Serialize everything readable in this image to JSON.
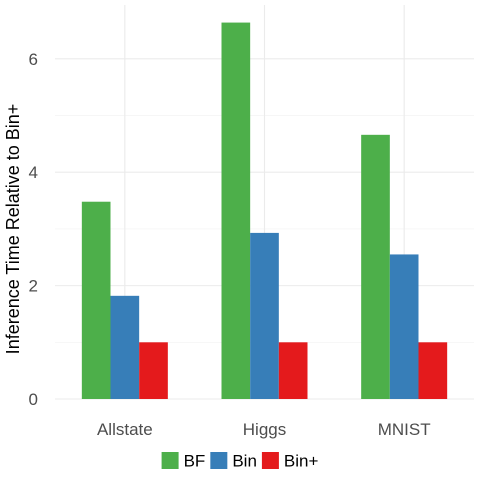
{
  "chart_data": {
    "type": "bar",
    "title": "",
    "xlabel": "",
    "ylabel": "Inference Time Relative to Bin+",
    "categories": [
      "Allstate",
      "Higgs",
      "MNIST"
    ],
    "series": [
      {
        "name": "BF",
        "color": "#4DAF4A",
        "values": [
          3.48,
          6.64,
          4.66
        ]
      },
      {
        "name": "Bin",
        "color": "#377EB8",
        "values": [
          1.82,
          2.93,
          2.55
        ]
      },
      {
        "name": "Bin+",
        "color": "#E41A1C",
        "values": [
          1.0,
          1.0,
          1.0
        ]
      }
    ],
    "ylim": [
      0,
      6.95
    ],
    "yticks": [
      "0",
      "2",
      "4",
      "6"
    ],
    "grid": true,
    "legend_position": "bottom"
  }
}
